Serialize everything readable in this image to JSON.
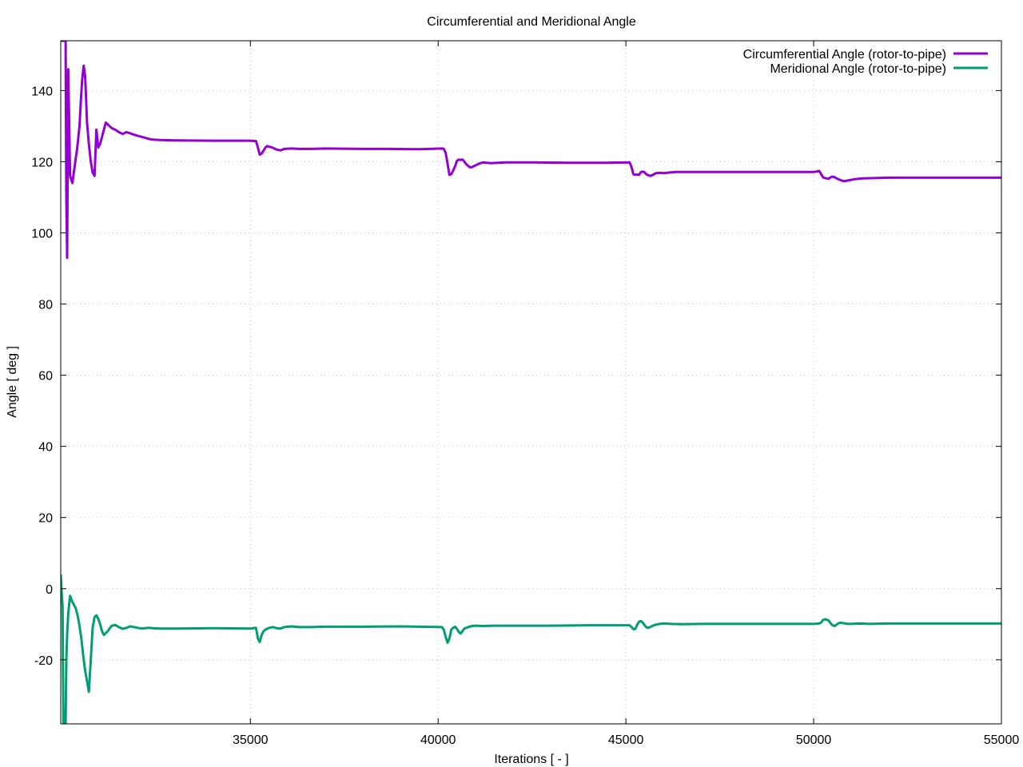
{
  "chart_data": {
    "type": "line",
    "title": "Circumferential and Meridional Angle",
    "xlabel": "Iterations [ - ]",
    "ylabel": "Angle [ deg ]",
    "xlim": [
      29950,
      55000
    ],
    "ylim": [
      -38,
      154
    ],
    "xticks": [
      35000,
      40000,
      45000,
      50000,
      55000
    ],
    "yticks": [
      -20,
      0,
      20,
      40,
      60,
      80,
      100,
      120,
      140
    ],
    "grid": true,
    "legend_position": "top-right",
    "series": [
      {
        "name": "Circumferential Angle (rotor-to-pipe)",
        "color": "#9400d3",
        "x": [
          29950,
          30010,
          30040,
          30060,
          30080,
          30100,
          30120,
          30150,
          30200,
          30260,
          30300,
          30350,
          30380,
          30420,
          30450,
          30480,
          30520,
          30560,
          30600,
          30620,
          30650,
          30700,
          30750,
          30800,
          30850,
          30900,
          30950,
          31000,
          31050,
          31100,
          31150,
          31200,
          31300,
          31400,
          31500,
          31600,
          31700,
          31800,
          31900,
          32000,
          32100,
          32200,
          32300,
          32400,
          32600,
          33000,
          34000,
          35000,
          35150,
          35200,
          35250,
          35300,
          35350,
          35400,
          35450,
          35500,
          35550,
          35600,
          35700,
          35800,
          35900,
          36100,
          36300,
          36600,
          37000,
          38000,
          38700,
          39500,
          40100,
          40150,
          40200,
          40250,
          40300,
          40350,
          40400,
          40450,
          40500,
          40550,
          40600,
          40650,
          40700,
          40750,
          40800,
          40850,
          40900,
          41000,
          41100,
          41200,
          41400,
          41800,
          42500,
          43500,
          44500,
          45100,
          45150,
          45200,
          45250,
          45300,
          45350,
          45400,
          45450,
          45500,
          45550,
          45600,
          45650,
          45700,
          45750,
          45800,
          45900,
          46000,
          46100,
          46300,
          46600,
          47000,
          48000,
          49000,
          50000,
          50150,
          50200,
          50250,
          50300,
          50350,
          50400,
          50450,
          50500,
          50550,
          50600,
          50650,
          50700,
          50800,
          50900,
          51000,
          51100,
          51300,
          51600,
          52000,
          53000,
          54000,
          55000
        ],
        "values": [
          154,
          154,
          154,
          154,
          154,
          110,
          93,
          146,
          116,
          114,
          117,
          121,
          123,
          127,
          130,
          136,
          143,
          147,
          144,
          139,
          131,
          125,
          120,
          117,
          116,
          129,
          124,
          125,
          127,
          129,
          131,
          130.5,
          129.5,
          129,
          128.3,
          127.8,
          128.3,
          128,
          127.6,
          127.3,
          127,
          126.7,
          126.4,
          126.2,
          126.1,
          126,
          125.9,
          125.9,
          125.8,
          124,
          122,
          122.3,
          123.1,
          124,
          124.4,
          124.2,
          124.1,
          123.9,
          123.4,
          123.2,
          123.6,
          123.7,
          123.6,
          123.6,
          123.7,
          123.6,
          123.6,
          123.5,
          123.7,
          123.6,
          122.5,
          119.5,
          116.3,
          116.5,
          117.5,
          118.7,
          120.2,
          120.6,
          120.5,
          120.6,
          120,
          119.3,
          118.8,
          118.4,
          118.5,
          119,
          119.5,
          119.8,
          119.6,
          119.8,
          119.8,
          119.7,
          119.7,
          119.8,
          118.5,
          116.5,
          116.3,
          116.4,
          116.3,
          117.1,
          117.2,
          117,
          116.4,
          116.2,
          116,
          116.2,
          116.5,
          116.8,
          116.9,
          116.8,
          116.9,
          117.1,
          117.1,
          117.1,
          117.1,
          117.1,
          117.1,
          117.4,
          116.5,
          115.6,
          115.4,
          115.3,
          115.2,
          115.6,
          115.8,
          115.7,
          115.4,
          115.1,
          114.9,
          114.5,
          114.7,
          114.9,
          115.1,
          115.3,
          115.4,
          115.5,
          115.5,
          115.5,
          115.5
        ]
      },
      {
        "name": "Meridional Angle (rotor-to-pipe)",
        "color": "#009e73",
        "x": [
          29950,
          29970,
          30000,
          30020,
          30040,
          30060,
          30080,
          30100,
          30120,
          30150,
          30200,
          30250,
          30300,
          30350,
          30400,
          30450,
          30500,
          30550,
          30600,
          30650,
          30700,
          30750,
          30800,
          30850,
          30900,
          30950,
          31000,
          31050,
          31100,
          31200,
          31300,
          31400,
          31500,
          31600,
          31700,
          31800,
          31900,
          32000,
          32100,
          32200,
          32300,
          32400,
          32600,
          33000,
          34000,
          35000,
          35150,
          35200,
          35250,
          35300,
          35350,
          35400,
          35500,
          35600,
          35700,
          35800,
          35900,
          36100,
          36300,
          36600,
          37000,
          38000,
          39000,
          40100,
          40150,
          40200,
          40250,
          40300,
          40350,
          40400,
          40450,
          40500,
          40550,
          40600,
          40700,
          40800,
          40900,
          41000,
          41200,
          41500,
          42000,
          43000,
          44000,
          45100,
          45150,
          45200,
          45250,
          45300,
          45350,
          45400,
          45450,
          45500,
          45550,
          45600,
          45700,
          45800,
          45900,
          46000,
          46200,
          46500,
          47000,
          48000,
          49000,
          50000,
          50150,
          50200,
          50250,
          50300,
          50350,
          50400,
          50450,
          50500,
          50550,
          50600,
          50650,
          50700,
          50800,
          50900,
          51000,
          51200,
          51500,
          52000,
          53000,
          54000,
          55000
        ],
        "values": [
          4,
          0,
          -5,
          -38,
          -38,
          -38,
          -38,
          -20,
          -13,
          -7,
          -2,
          -3.5,
          -4.5,
          -5.5,
          -7.5,
          -10.5,
          -14,
          -19,
          -23,
          -26,
          -29,
          -20,
          -11,
          -8,
          -7.5,
          -8.5,
          -10,
          -12,
          -13,
          -12,
          -10.5,
          -10.2,
          -10.8,
          -11.3,
          -11,
          -10.6,
          -10.8,
          -11,
          -11.2,
          -11.1,
          -11,
          -11.1,
          -11.2,
          -11.2,
          -11.1,
          -11.2,
          -11,
          -14,
          -15,
          -13,
          -12,
          -11.5,
          -11,
          -10.8,
          -11.1,
          -11.2,
          -10.8,
          -10.6,
          -10.8,
          -10.8,
          -10.7,
          -10.7,
          -10.6,
          -10.8,
          -11.5,
          -13.5,
          -15.2,
          -14,
          -11.5,
          -11,
          -10.7,
          -11.3,
          -12.2,
          -12.6,
          -11.2,
          -10.8,
          -10.5,
          -10.4,
          -10.5,
          -10.4,
          -10.4,
          -10.4,
          -10.3,
          -10.3,
          -10.8,
          -11.4,
          -11.3,
          -10.2,
          -9.3,
          -9.1,
          -9.6,
          -10.3,
          -10.9,
          -11,
          -10.5,
          -10.1,
          -9.9,
          -9.8,
          -9.9,
          -10,
          -9.9,
          -9.9,
          -9.9,
          -9.9,
          -9.8,
          -9.5,
          -8.8,
          -8.6,
          -8.7,
          -9,
          -9.7,
          -10.3,
          -10.5,
          -10.2,
          -9.8,
          -9.6,
          -9.7,
          -9.9,
          -9.9,
          -9.8,
          -9.9,
          -9.8,
          -9.8,
          -9.8,
          -9.8
        ]
      }
    ]
  }
}
